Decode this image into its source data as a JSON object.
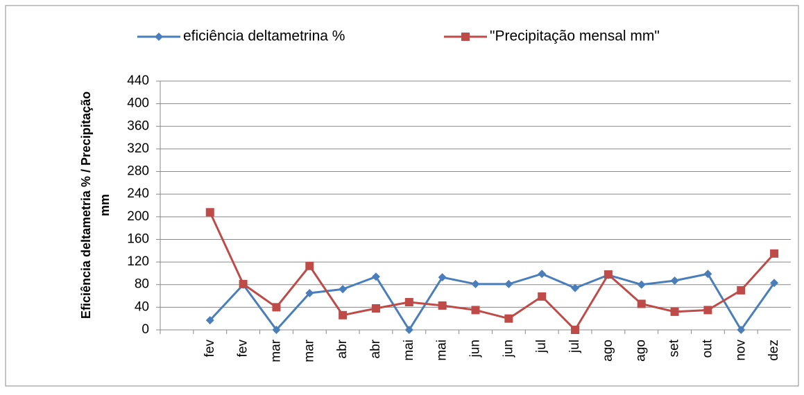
{
  "chart_data": {
    "type": "line",
    "y_label": [
      "Eficiência deltametria % / Precipitação",
      "mm"
    ],
    "categories": [
      null,
      "fev",
      "fev",
      "mar",
      "mar",
      "abr",
      "abr",
      "mai",
      "mai",
      "jun",
      "jun",
      "jul",
      "jul",
      "ago",
      "ago",
      "set",
      "out",
      "nov",
      "dez"
    ],
    "series": [
      {
        "name": "eficiência deltametrina %",
        "color": "#4a7ebb",
        "marker": "diamond",
        "values": [
          null,
          17,
          80,
          0,
          65,
          72,
          94,
          0,
          93,
          81,
          81,
          99,
          74,
          97,
          80,
          87,
          99,
          0,
          83
        ]
      },
      {
        "name": "\"Precipitação mensal mm\"",
        "color": "#be4b48",
        "marker": "square",
        "values": [
          null,
          208,
          81,
          40,
          113,
          26,
          38,
          49,
          43,
          35,
          20,
          59,
          0,
          98,
          46,
          32,
          35,
          70,
          135
        ]
      }
    ],
    "ylim": [
      0,
      440
    ],
    "yticks": [
      0,
      40,
      80,
      120,
      160,
      200,
      240,
      280,
      320,
      360,
      400,
      440
    ],
    "grid": true,
    "legend": "top"
  }
}
